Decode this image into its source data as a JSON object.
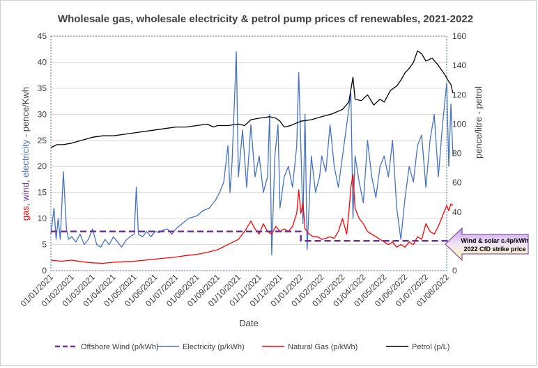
{
  "chart_data": {
    "type": "line",
    "title": "Wholesale gas, wholesale electricity & petrol pump prices cf renewables, 2021-2022",
    "xlabel": "Date",
    "ylabel_left_parts": [
      "gas",
      ", ",
      "wind",
      ", ",
      "electricity",
      " - pence/Kwh"
    ],
    "ylabel_left_colors": [
      "#ff0000",
      "#404040",
      "#7030a0",
      "#404040",
      "#4472c4",
      "#404040"
    ],
    "ylabel_right": "pence/litre - petrol",
    "y_left": {
      "min": 0,
      "max": 45,
      "ticks": [
        0,
        5,
        10,
        15,
        20,
        25,
        30,
        35,
        40,
        45
      ]
    },
    "y_right": {
      "min": 0,
      "max": 160,
      "ticks": [
        0,
        20,
        40,
        60,
        80,
        100,
        120,
        140,
        160
      ]
    },
    "x_ticks": [
      "01/01/2021",
      "01/02/2021",
      "01/03/2021",
      "01/04/2021",
      "01/05/2021",
      "01/06/2021",
      "01/07/2021",
      "01/08/2021",
      "01/09/2021",
      "01/10/2021",
      "01/11/2021",
      "01/12/2021",
      "01/01/2022",
      "01/02/2022",
      "01/03/2022",
      "01/04/2022",
      "01/05/2022",
      "01/06/2022",
      "01/07/2022",
      "01/08/2022"
    ],
    "annotation": {
      "line1": "Wind & solar c.4p/kWh",
      "line2": "2022 CfD strike price"
    },
    "series": [
      {
        "name": "Offshore Wind (p/kWh)",
        "axis": "left",
        "color": "#7030a0",
        "style": "dashed",
        "points": [
          [
            0,
            7.5
          ],
          [
            12,
            7.5
          ],
          [
            12,
            5.7
          ],
          [
            19.3,
            5.7
          ]
        ]
      },
      {
        "name": "Electricity (p/kWh)",
        "axis": "left",
        "color": "#4472c4",
        "style": "solid",
        "points": [
          [
            0,
            7
          ],
          [
            0.15,
            12
          ],
          [
            0.25,
            6
          ],
          [
            0.35,
            10
          ],
          [
            0.45,
            6
          ],
          [
            0.6,
            19
          ],
          [
            0.75,
            8
          ],
          [
            0.85,
            6
          ],
          [
            1.0,
            6.5
          ],
          [
            1.2,
            5.5
          ],
          [
            1.4,
            7
          ],
          [
            1.6,
            5
          ],
          [
            1.8,
            6
          ],
          [
            2.0,
            8
          ],
          [
            2.2,
            5
          ],
          [
            2.4,
            4.5
          ],
          [
            2.6,
            6
          ],
          [
            2.8,
            5
          ],
          [
            3.0,
            6.5
          ],
          [
            3.2,
            5.5
          ],
          [
            3.4,
            4.5
          ],
          [
            3.6,
            5.8
          ],
          [
            3.8,
            6.5
          ],
          [
            4.0,
            7
          ],
          [
            4.1,
            16
          ],
          [
            4.2,
            7
          ],
          [
            4.4,
            6.5
          ],
          [
            4.6,
            7.5
          ],
          [
            4.8,
            6.5
          ],
          [
            5.0,
            7.5
          ],
          [
            5.2,
            7.3
          ],
          [
            5.4,
            7.8
          ],
          [
            5.6,
            8
          ],
          [
            5.8,
            7
          ],
          [
            6.0,
            8
          ],
          [
            6.3,
            9
          ],
          [
            6.6,
            10
          ],
          [
            7.0,
            10.5
          ],
          [
            7.3,
            11.5
          ],
          [
            7.6,
            12
          ],
          [
            7.9,
            13.5
          ],
          [
            8.1,
            15
          ],
          [
            8.3,
            17
          ],
          [
            8.5,
            24
          ],
          [
            8.6,
            15
          ],
          [
            8.7,
            21
          ],
          [
            8.9,
            42
          ],
          [
            9.0,
            18
          ],
          [
            9.2,
            27
          ],
          [
            9.4,
            16
          ],
          [
            9.6,
            28
          ],
          [
            9.8,
            18
          ],
          [
            10.0,
            22
          ],
          [
            10.2,
            15
          ],
          [
            10.4,
            18
          ],
          [
            10.5,
            30
          ],
          [
            10.6,
            3
          ],
          [
            10.75,
            22
          ],
          [
            10.9,
            28
          ],
          [
            11.0,
            12
          ],
          [
            11.2,
            18
          ],
          [
            11.4,
            20
          ],
          [
            11.6,
            16
          ],
          [
            11.8,
            24
          ],
          [
            11.9,
            38
          ],
          [
            12.0,
            24
          ],
          [
            12.1,
            9
          ],
          [
            12.2,
            30
          ],
          [
            12.3,
            4
          ],
          [
            12.5,
            22
          ],
          [
            12.7,
            15
          ],
          [
            12.9,
            18
          ],
          [
            13.0,
            22
          ],
          [
            13.2,
            19
          ],
          [
            13.4,
            28
          ],
          [
            13.6,
            20
          ],
          [
            13.8,
            16
          ],
          [
            14.0,
            22
          ],
          [
            14.2,
            28
          ],
          [
            14.4,
            34
          ],
          [
            14.5,
            10
          ],
          [
            14.6,
            22
          ],
          [
            14.8,
            17
          ],
          [
            15.0,
            13
          ],
          [
            15.2,
            25
          ],
          [
            15.4,
            18
          ],
          [
            15.6,
            14
          ],
          [
            15.8,
            20
          ],
          [
            16.0,
            22
          ],
          [
            16.2,
            18
          ],
          [
            16.4,
            25
          ],
          [
            16.6,
            12
          ],
          [
            16.8,
            6
          ],
          [
            17.0,
            14
          ],
          [
            17.2,
            20
          ],
          [
            17.4,
            17
          ],
          [
            17.6,
            24
          ],
          [
            17.8,
            26
          ],
          [
            18.0,
            16
          ],
          [
            18.2,
            25
          ],
          [
            18.4,
            30
          ],
          [
            18.6,
            18
          ],
          [
            18.8,
            28
          ],
          [
            19.0,
            36
          ],
          [
            19.1,
            20
          ],
          [
            19.2,
            32
          ],
          [
            19.3,
            22
          ]
        ]
      },
      {
        "name": "Natural Gas (p/kWh)",
        "axis": "left",
        "color": "#ff0000",
        "style": "solid",
        "points": [
          [
            0,
            2
          ],
          [
            0.5,
            1.8
          ],
          [
            1.0,
            2.0
          ],
          [
            1.5,
            1.7
          ],
          [
            2.0,
            1.5
          ],
          [
            2.5,
            1.4
          ],
          [
            3.0,
            1.6
          ],
          [
            3.5,
            1.7
          ],
          [
            4.0,
            1.8
          ],
          [
            4.5,
            2.0
          ],
          [
            5.0,
            2.2
          ],
          [
            5.5,
            2.4
          ],
          [
            6.0,
            2.6
          ],
          [
            6.5,
            2.9
          ],
          [
            7.0,
            3.1
          ],
          [
            7.5,
            3.5
          ],
          [
            8.0,
            4.0
          ],
          [
            8.5,
            5.0
          ],
          [
            9.0,
            6.0
          ],
          [
            9.3,
            7.5
          ],
          [
            9.6,
            9.5
          ],
          [
            9.8,
            8.0
          ],
          [
            10.0,
            7.0
          ],
          [
            10.2,
            9.0
          ],
          [
            10.4,
            7.5
          ],
          [
            10.6,
            7.0
          ],
          [
            10.8,
            8.5
          ],
          [
            11.0,
            7.5
          ],
          [
            11.2,
            8.0
          ],
          [
            11.4,
            7.5
          ],
          [
            11.6,
            8.5
          ],
          [
            11.8,
            11
          ],
          [
            11.9,
            15.5
          ],
          [
            12.0,
            11
          ],
          [
            12.1,
            13
          ],
          [
            12.2,
            8
          ],
          [
            12.4,
            7
          ],
          [
            12.6,
            6.5
          ],
          [
            12.8,
            6.5
          ],
          [
            13.0,
            6
          ],
          [
            13.2,
            6.2
          ],
          [
            13.4,
            6.5
          ],
          [
            13.6,
            6.2
          ],
          [
            13.8,
            7.5
          ],
          [
            14.0,
            10
          ],
          [
            14.2,
            7
          ],
          [
            14.3,
            11
          ],
          [
            14.4,
            16
          ],
          [
            14.5,
            18.5
          ],
          [
            14.6,
            12
          ],
          [
            14.8,
            10
          ],
          [
            15.0,
            9
          ],
          [
            15.2,
            7.5
          ],
          [
            15.4,
            7
          ],
          [
            15.6,
            6.5
          ],
          [
            15.8,
            6.0
          ],
          [
            16.0,
            5.5
          ],
          [
            16.2,
            5.0
          ],
          [
            16.4,
            5.5
          ],
          [
            16.6,
            4.5
          ],
          [
            16.8,
            5.0
          ],
          [
            17.0,
            4.5
          ],
          [
            17.2,
            5.5
          ],
          [
            17.4,
            5.0
          ],
          [
            17.6,
            6.5
          ],
          [
            17.8,
            6.0
          ],
          [
            18.0,
            9.0
          ],
          [
            18.2,
            7.5
          ],
          [
            18.4,
            7.0
          ],
          [
            18.6,
            8.5
          ],
          [
            18.8,
            10.5
          ],
          [
            19.0,
            12.5
          ],
          [
            19.1,
            11.5
          ],
          [
            19.2,
            12.8
          ],
          [
            19.3,
            12.5
          ]
        ]
      },
      {
        "name": "Petrol (p/L)",
        "axis": "right",
        "color": "#000000",
        "style": "solid",
        "points": [
          [
            0,
            84
          ],
          [
            0.3,
            86
          ],
          [
            0.6,
            86
          ],
          [
            1.0,
            87
          ],
          [
            1.5,
            89
          ],
          [
            2.0,
            91
          ],
          [
            2.5,
            92
          ],
          [
            3.0,
            92
          ],
          [
            3.5,
            93
          ],
          [
            4.0,
            94
          ],
          [
            4.5,
            95
          ],
          [
            5.0,
            96
          ],
          [
            5.5,
            97
          ],
          [
            6.0,
            98
          ],
          [
            6.5,
            98
          ],
          [
            7.0,
            99
          ],
          [
            7.5,
            100
          ],
          [
            7.8,
            98
          ],
          [
            8.0,
            99
          ],
          [
            8.5,
            99
          ],
          [
            9.0,
            100
          ],
          [
            9.3,
            99
          ],
          [
            9.6,
            103
          ],
          [
            10.0,
            104
          ],
          [
            10.5,
            105
          ],
          [
            10.8,
            104
          ],
          [
            11.0,
            102
          ],
          [
            11.2,
            98
          ],
          [
            11.5,
            99
          ],
          [
            12.0,
            102
          ],
          [
            12.5,
            103
          ],
          [
            13.0,
            105
          ],
          [
            13.5,
            107
          ],
          [
            14.0,
            110
          ],
          [
            14.3,
            115
          ],
          [
            14.5,
            132
          ],
          [
            14.6,
            117
          ],
          [
            14.9,
            116
          ],
          [
            15.2,
            120
          ],
          [
            15.5,
            113
          ],
          [
            15.8,
            117
          ],
          [
            16.0,
            115
          ],
          [
            16.3,
            123
          ],
          [
            16.6,
            126
          ],
          [
            16.8,
            130
          ],
          [
            17.0,
            135
          ],
          [
            17.2,
            138
          ],
          [
            17.4,
            142
          ],
          [
            17.6,
            150
          ],
          [
            17.8,
            148
          ],
          [
            18.0,
            143
          ],
          [
            18.3,
            145
          ],
          [
            18.6,
            140
          ],
          [
            18.9,
            134
          ],
          [
            19.1,
            129
          ],
          [
            19.2,
            127
          ],
          [
            19.3,
            121
          ]
        ]
      }
    ]
  }
}
